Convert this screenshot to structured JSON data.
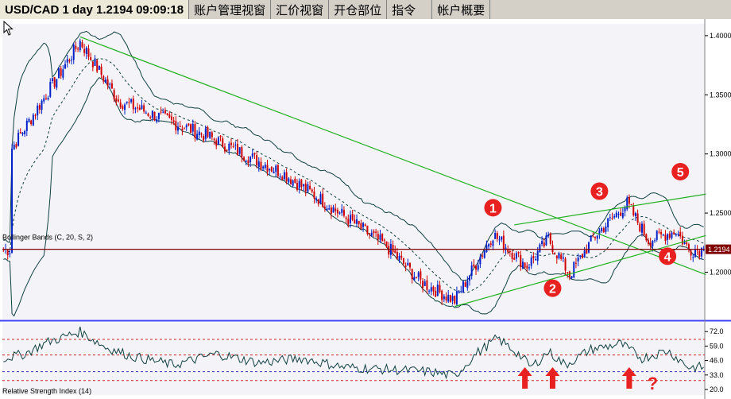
{
  "tabs": [
    {
      "label": "USD/CAD 1 day 1.2194 09:09:18",
      "active": true
    },
    {
      "label": "账户管理视窗",
      "active": false
    },
    {
      "label": "汇价视窗",
      "active": false
    },
    {
      "label": "开仓部位",
      "active": false
    },
    {
      "label": "指令",
      "active": false
    },
    {
      "label": "帐户概要",
      "active": false
    }
  ],
  "chart_data": [
    {
      "type": "candlestick",
      "symbol": "USD/CAD",
      "timeframe": "1 day",
      "indicator_label": "Bollinger Bands (C, 20, S, 2)",
      "current_price": 1.2194,
      "current_price_label": "1.2194",
      "ylim": [
        1.16,
        1.41
      ],
      "y_ticks": [
        "1.4000",
        "1.3500",
        "1.3000",
        "1.2500",
        "1.2000"
      ],
      "y_tick_values": [
        1.4,
        1.35,
        1.3,
        1.25,
        1.2
      ],
      "key_points": [
        {
          "index": 4,
          "price": 1.305
        },
        {
          "index": 36,
          "price": 1.395
        },
        {
          "index": 54,
          "price": 1.345
        },
        {
          "index": 96,
          "price": 1.315
        },
        {
          "index": 132,
          "price": 1.283
        },
        {
          "index": 180,
          "price": 1.222
        },
        {
          "index": 196,
          "price": 1.192
        },
        {
          "index": 212,
          "price": 1.176
        },
        {
          "index": 230,
          "price": 1.232
        },
        {
          "index": 246,
          "price": 1.205
        },
        {
          "index": 256,
          "price": 1.228
        },
        {
          "index": 266,
          "price": 1.198
        },
        {
          "index": 278,
          "price": 1.231
        },
        {
          "index": 293,
          "price": 1.258
        },
        {
          "index": 303,
          "price": 1.227
        },
        {
          "index": 316,
          "price": 1.235
        },
        {
          "index": 322,
          "price": 1.219
        }
      ],
      "trendlines": [
        {
          "name": "downtrend",
          "from": {
            "index": 36,
            "price": 1.399
          },
          "to": {
            "index": 330,
            "price": 1.198
          }
        },
        {
          "name": "lower-channel",
          "from": {
            "index": 212,
            "price": 1.171
          },
          "to": {
            "index": 330,
            "price": 1.231
          }
        },
        {
          "name": "upper-channel",
          "from": {
            "index": 240,
            "price": 1.24
          },
          "to": {
            "index": 330,
            "price": 1.266
          }
        }
      ],
      "horizontal_line": 1.2194,
      "annotations": [
        {
          "label": "1",
          "index": 230,
          "price": 1.2545
        },
        {
          "label": "2",
          "index": 258,
          "price": 1.1865
        },
        {
          "label": "3",
          "index": 280,
          "price": 1.2685
        },
        {
          "label": "4",
          "index": 312,
          "price": 1.2135
        },
        {
          "label": "5",
          "index": 318,
          "price": 1.285
        }
      ]
    },
    {
      "type": "line",
      "indicator_label": "Relative Strength Index (14)",
      "ylim": [
        15,
        80
      ],
      "y_ticks": [
        "72.0",
        "59.0",
        "46.0",
        "33.0",
        "20.0"
      ],
      "y_tick_values": [
        72,
        59,
        46,
        33,
        20
      ],
      "ref_lines": [
        {
          "value": 65,
          "color": "#d02020"
        },
        {
          "value": 51,
          "color": "#d02020"
        },
        {
          "value": 36,
          "color": "#3030c0"
        },
        {
          "value": 28,
          "color": "#d02020"
        }
      ],
      "key_points": [
        {
          "index": 0,
          "value": 48
        },
        {
          "index": 10,
          "value": 52
        },
        {
          "index": 20,
          "value": 62
        },
        {
          "index": 36,
          "value": 72
        },
        {
          "index": 48,
          "value": 58
        },
        {
          "index": 60,
          "value": 50
        },
        {
          "index": 80,
          "value": 42
        },
        {
          "index": 100,
          "value": 52
        },
        {
          "index": 120,
          "value": 44
        },
        {
          "index": 140,
          "value": 48
        },
        {
          "index": 160,
          "value": 40
        },
        {
          "index": 180,
          "value": 38
        },
        {
          "index": 200,
          "value": 36
        },
        {
          "index": 212,
          "value": 32
        },
        {
          "index": 222,
          "value": 52
        },
        {
          "index": 232,
          "value": 66
        },
        {
          "index": 242,
          "value": 52
        },
        {
          "index": 248,
          "value": 40
        },
        {
          "index": 256,
          "value": 54
        },
        {
          "index": 264,
          "value": 42
        },
        {
          "index": 276,
          "value": 56
        },
        {
          "index": 290,
          "value": 61
        },
        {
          "index": 300,
          "value": 48
        },
        {
          "index": 312,
          "value": 55
        },
        {
          "index": 322,
          "value": 40
        }
      ],
      "arrows_at": [
        245,
        258,
        294
      ],
      "question_label": "?",
      "question_at": 305
    }
  ]
}
